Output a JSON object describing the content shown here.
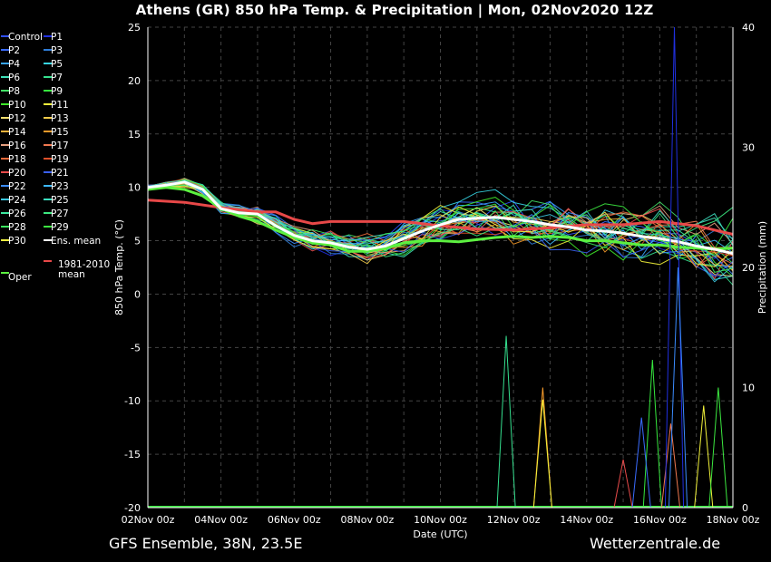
{
  "title": "Athens  (GR)  850 hPa Temp. & Precipitation | Mon, 02Nov2020 12Z",
  "footer_left": "GFS Ensemble, 38N, 23.5E",
  "footer_right": "Wetterzentrale.de",
  "chart_data": {
    "type": "line",
    "title": "Athens  (GR)  850 hPa Temp. & Precipitation | Mon, 02Nov2020 12Z",
    "xlabel": "Date (UTC)",
    "ylabel": "850 hPa Temp. (°C)",
    "y2label": "Precipitation (mm)",
    "ylim": [
      -20,
      25
    ],
    "y2lim": [
      0,
      40
    ],
    "yticks": [
      -20,
      -15,
      -10,
      -5,
      0,
      5,
      10,
      15,
      20,
      25
    ],
    "y2ticks": [
      0,
      10,
      20,
      30,
      40
    ],
    "x_range_days": [
      0,
      16
    ],
    "xticks": [
      "02Nov 00z",
      "04Nov 00z",
      "06Nov 00z",
      "08Nov 00z",
      "10Nov 00z",
      "12Nov 00z",
      "14Nov 00z",
      "16Nov 00z",
      "18Nov 00z"
    ],
    "grid": true,
    "legend_position": "left",
    "legend": [
      {
        "label": "Control",
        "color": "#3050ff"
      },
      {
        "label": "P1",
        "color": "#2030e0"
      },
      {
        "label": "P2",
        "color": "#3a6cff"
      },
      {
        "label": "P3",
        "color": "#2f7dd8"
      },
      {
        "label": "P4",
        "color": "#39a6ff"
      },
      {
        "label": "P5",
        "color": "#37d6e6"
      },
      {
        "label": "P6",
        "color": "#3fe0b8"
      },
      {
        "label": "P7",
        "color": "#35e08f"
      },
      {
        "label": "P8",
        "color": "#42e066"
      },
      {
        "label": "P9",
        "color": "#36e83e"
      },
      {
        "label": "P10",
        "color": "#3ee82a"
      },
      {
        "label": "P11",
        "color": "#f2f23a"
      },
      {
        "label": "P12",
        "color": "#f5e070"
      },
      {
        "label": "P13",
        "color": "#f2cc4a"
      },
      {
        "label": "P14",
        "color": "#f5b23c"
      },
      {
        "label": "P15",
        "color": "#f59a2a"
      },
      {
        "label": "P16",
        "color": "#e6a080"
      },
      {
        "label": "P17",
        "color": "#f07850"
      },
      {
        "label": "P18",
        "color": "#f06a3a"
      },
      {
        "label": "P19",
        "color": "#e0502a"
      },
      {
        "label": "P20",
        "color": "#e84a4a"
      },
      {
        "label": "P21",
        "color": "#3a5ff0"
      },
      {
        "label": "P22",
        "color": "#3b8cff"
      },
      {
        "label": "P23",
        "color": "#3cb8ff"
      },
      {
        "label": "P24",
        "color": "#3cc8e0"
      },
      {
        "label": "P25",
        "color": "#3ce0c0"
      },
      {
        "label": "P26",
        "color": "#3ce8a0"
      },
      {
        "label": "P27",
        "color": "#3ce880"
      },
      {
        "label": "P28",
        "color": "#3ce860"
      },
      {
        "label": "P29",
        "color": "#3ce840"
      },
      {
        "label": "P30",
        "color": "#f0f040"
      },
      {
        "label": "Ens. mean",
        "color": "#ffffff"
      },
      {
        "label": "1981-2010\nmean",
        "color": "#e84848"
      },
      {
        "label": "Oper",
        "color": "#5cf040"
      }
    ],
    "series_ens_mean": {
      "name": "Ens. mean",
      "color": "#ffffff",
      "values": [
        [
          0,
          10.0
        ],
        [
          0.5,
          10.2
        ],
        [
          1,
          10.5
        ],
        [
          1.5,
          9.8
        ],
        [
          2,
          8.0
        ],
        [
          2.5,
          7.6
        ],
        [
          3,
          7.5
        ],
        [
          3.5,
          6.4
        ],
        [
          4,
          5.5
        ],
        [
          4.5,
          5.0
        ],
        [
          5,
          4.8
        ],
        [
          5.5,
          4.4
        ],
        [
          6,
          4.2
        ],
        [
          6.5,
          4.5
        ],
        [
          7,
          5.2
        ],
        [
          7.5,
          5.9
        ],
        [
          8,
          6.5
        ],
        [
          8.5,
          7.0
        ],
        [
          9,
          7.1
        ],
        [
          9.5,
          7.2
        ],
        [
          10,
          7.0
        ],
        [
          10.5,
          6.8
        ],
        [
          11,
          6.5
        ],
        [
          11.5,
          6.3
        ],
        [
          12,
          6.0
        ],
        [
          12.5,
          5.9
        ],
        [
          13,
          5.7
        ],
        [
          13.5,
          5.4
        ],
        [
          14,
          5.2
        ],
        [
          14.5,
          4.9
        ],
        [
          15,
          4.5
        ],
        [
          15.5,
          4.2
        ],
        [
          16,
          3.8
        ]
      ]
    },
    "series_clim": {
      "name": "1981-2010 mean",
      "color": "#e84848",
      "values": [
        [
          0,
          8.8
        ],
        [
          1,
          8.6
        ],
        [
          2,
          8.1
        ],
        [
          3,
          7.7
        ],
        [
          3.5,
          7.7
        ],
        [
          4,
          7.0
        ],
        [
          4.5,
          6.6
        ],
        [
          5,
          6.8
        ],
        [
          6,
          6.8
        ],
        [
          7,
          6.8
        ],
        [
          8,
          6.4
        ],
        [
          9,
          6.1
        ],
        [
          10,
          6.0
        ],
        [
          11,
          6.2
        ],
        [
          12,
          6.5
        ],
        [
          13,
          6.5
        ],
        [
          14,
          6.8
        ],
        [
          15,
          6.4
        ],
        [
          16,
          5.6
        ]
      ]
    },
    "series_oper": {
      "name": "Oper",
      "color": "#5cf040",
      "values": [
        [
          0,
          9.8
        ],
        [
          0.5,
          10.0
        ],
        [
          1,
          9.8
        ],
        [
          1.5,
          9.2
        ],
        [
          2,
          8.0
        ],
        [
          2.5,
          7.3
        ],
        [
          3,
          6.8
        ],
        [
          3.5,
          6.0
        ],
        [
          4,
          5.3
        ],
        [
          4.5,
          4.8
        ],
        [
          5,
          4.6
        ],
        [
          5.5,
          4.0
        ],
        [
          6,
          4.0
        ],
        [
          6.5,
          4.3
        ],
        [
          7,
          4.8
        ],
        [
          7.5,
          5.0
        ],
        [
          8,
          5.0
        ],
        [
          8.5,
          4.9
        ],
        [
          9,
          5.1
        ],
        [
          9.5,
          5.3
        ],
        [
          10,
          5.4
        ],
        [
          10.5,
          5.3
        ],
        [
          11,
          5.4
        ],
        [
          11.5,
          5.3
        ],
        [
          12,
          5.0
        ],
        [
          12.5,
          5.0
        ],
        [
          13,
          4.8
        ],
        [
          13.5,
          4.6
        ],
        [
          14,
          4.6
        ],
        [
          14.5,
          4.4
        ],
        [
          15,
          4.3
        ],
        [
          15.5,
          4.2
        ],
        [
          16,
          4.3
        ]
      ]
    },
    "precip_spikes": [
      {
        "x": 9.8,
        "value": 14.3,
        "color": "#35e08f"
      },
      {
        "x": 10.8,
        "value": 10.0,
        "color": "#f59a2a"
      },
      {
        "x": 10.8,
        "value": 9.0,
        "color": "#f2f23a"
      },
      {
        "x": 13.8,
        "value": 12.3,
        "color": "#36e83e"
      },
      {
        "x": 14.3,
        "value": 7.0,
        "color": "#f07850"
      },
      {
        "x": 13.0,
        "value": 4.0,
        "color": "#e84a4a"
      },
      {
        "x": 13.5,
        "value": 7.5,
        "color": "#3a6cff"
      },
      {
        "x": 14.4,
        "value": 40.0,
        "color": "#2030e0"
      },
      {
        "x": 14.5,
        "value": 20.0,
        "color": "#3b8cff"
      },
      {
        "x": 15.2,
        "value": 8.5,
        "color": "#f2f23a"
      },
      {
        "x": 15.6,
        "value": 10.0,
        "color": "#3ce840"
      }
    ]
  }
}
